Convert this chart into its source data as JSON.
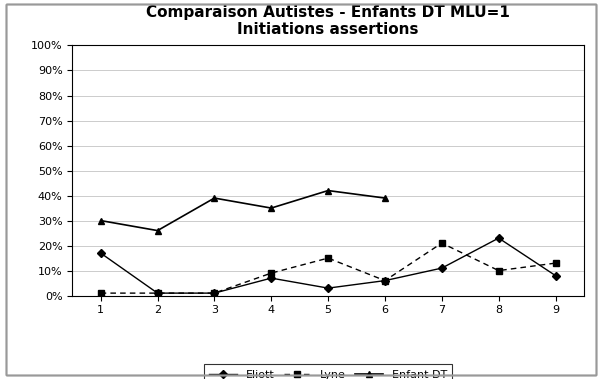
{
  "title_line1": "Comparaison Autistes - Enfants DT MLU=1",
  "title_line2": "Initiations assertions",
  "x": [
    1,
    2,
    3,
    4,
    5,
    6,
    7,
    8,
    9
  ],
  "eliott": [
    0.17,
    0.01,
    0.01,
    0.07,
    0.03,
    0.06,
    0.11,
    0.23,
    0.08
  ],
  "lyne": [
    0.01,
    0.01,
    0.01,
    0.09,
    0.15,
    0.06,
    0.21,
    0.1,
    0.13
  ],
  "enfant_dt": [
    0.3,
    0.26,
    0.39,
    0.35,
    0.42,
    0.39,
    null,
    null,
    null
  ],
  "eliott_color": "#000000",
  "lyne_color": "#000000",
  "enfant_dt_color": "#000000",
  "background_color": "#ffffff",
  "border_color": "#999999",
  "ylim": [
    0,
    1.0
  ],
  "yticks": [
    0,
    0.1,
    0.2,
    0.3,
    0.4,
    0.5,
    0.6,
    0.7,
    0.8,
    0.9,
    1.0
  ],
  "ytick_labels": [
    "0%",
    "10%",
    "20%",
    "30%",
    "40%",
    "50%",
    "60%",
    "70%",
    "80%",
    "90%",
    "100%"
  ],
  "xticks": [
    1,
    2,
    3,
    4,
    5,
    6,
    7,
    8,
    9
  ],
  "legend_labels": [
    "Eliott",
    "Lyne",
    "Enfant DT"
  ],
  "title_fontsize": 11,
  "tick_fontsize": 8,
  "legend_fontsize": 8
}
